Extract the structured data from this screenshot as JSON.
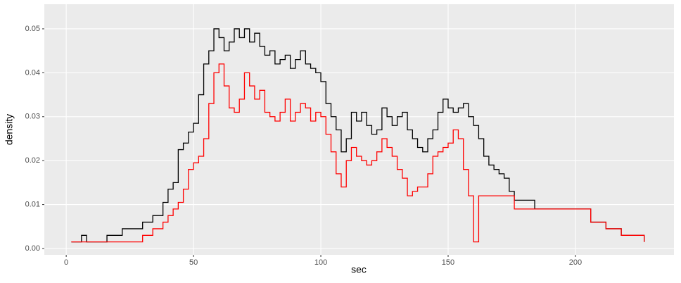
{
  "chart_data": {
    "type": "step",
    "xlabel": "sec",
    "ylabel": "density",
    "x": [
      2,
      6,
      8,
      16,
      22,
      30,
      34,
      38,
      40,
      42,
      44,
      46,
      48,
      50,
      52,
      54,
      56,
      58,
      60,
      62,
      64,
      66,
      68,
      70,
      72,
      74,
      76,
      78,
      80,
      82,
      84,
      86,
      88,
      90,
      92,
      94,
      96,
      98,
      100,
      102,
      104,
      106,
      108,
      110,
      112,
      114,
      116,
      118,
      120,
      122,
      124,
      126,
      128,
      130,
      132,
      134,
      136,
      138,
      140,
      142,
      144,
      146,
      148,
      150,
      152,
      154,
      156,
      158,
      160,
      162,
      164,
      166,
      168,
      170,
      172,
      174,
      176,
      184,
      196,
      206,
      212,
      218,
      227
    ],
    "series": [
      {
        "color": "#000000",
        "values": [
          0.0015,
          0.003,
          0.0015,
          0.003,
          0.0045,
          0.006,
          0.0075,
          0.0105,
          0.0135,
          0.015,
          0.0225,
          0.024,
          0.0265,
          0.0285,
          0.035,
          0.042,
          0.045,
          0.05,
          0.048,
          0.045,
          0.047,
          0.05,
          0.048,
          0.05,
          0.047,
          0.049,
          0.046,
          0.044,
          0.045,
          0.042,
          0.043,
          0.044,
          0.041,
          0.043,
          0.045,
          0.042,
          0.041,
          0.04,
          0.038,
          0.033,
          0.03,
          0.027,
          0.022,
          0.025,
          0.031,
          0.029,
          0.031,
          0.028,
          0.026,
          0.027,
          0.032,
          0.03,
          0.028,
          0.03,
          0.031,
          0.027,
          0.025,
          0.023,
          0.022,
          0.025,
          0.027,
          0.031,
          0.034,
          0.032,
          0.031,
          0.032,
          0.033,
          0.03,
          0.028,
          0.025,
          0.021,
          0.019,
          0.018,
          0.017,
          0.016,
          0.013,
          0.011,
          0.009,
          0.009,
          0.006,
          0.0045,
          0.003,
          0.0015
        ]
      },
      {
        "color": "#ff0000",
        "values": [
          0.0015,
          0.0015,
          0.0015,
          0.0015,
          0.0015,
          0.003,
          0.0045,
          0.006,
          0.0075,
          0.009,
          0.0105,
          0.0135,
          0.018,
          0.0195,
          0.021,
          0.025,
          0.033,
          0.04,
          0.042,
          0.037,
          0.032,
          0.031,
          0.034,
          0.04,
          0.037,
          0.034,
          0.036,
          0.031,
          0.03,
          0.029,
          0.031,
          0.034,
          0.029,
          0.031,
          0.033,
          0.032,
          0.029,
          0.031,
          0.03,
          0.026,
          0.022,
          0.017,
          0.014,
          0.02,
          0.023,
          0.021,
          0.02,
          0.019,
          0.02,
          0.022,
          0.025,
          0.023,
          0.021,
          0.018,
          0.016,
          0.012,
          0.013,
          0.014,
          0.014,
          0.017,
          0.021,
          0.022,
          0.023,
          0.024,
          0.027,
          0.025,
          0.018,
          0.012,
          0.0015,
          0.012,
          0.012,
          0.012,
          0.012,
          0.012,
          0.012,
          0.012,
          0.009,
          0.009,
          0.009,
          0.006,
          0.0045,
          0.003,
          0.0015
        ]
      }
    ],
    "xlim": [
      -8.6,
      238.7
    ],
    "xticks": [
      0,
      50,
      100,
      150,
      200
    ],
    "ylim": [
      -0.00144,
      0.0556
    ],
    "yticks": [
      {
        "value": 0,
        "label": "0.00"
      },
      {
        "value": 0.01,
        "label": "0.01"
      },
      {
        "value": 0.02,
        "label": "0.02"
      },
      {
        "value": 0.03,
        "label": "0.03"
      },
      {
        "value": 0.04,
        "label": "0.04"
      },
      {
        "value": 0.05,
        "label": "0.05"
      }
    ],
    "grid": true
  }
}
